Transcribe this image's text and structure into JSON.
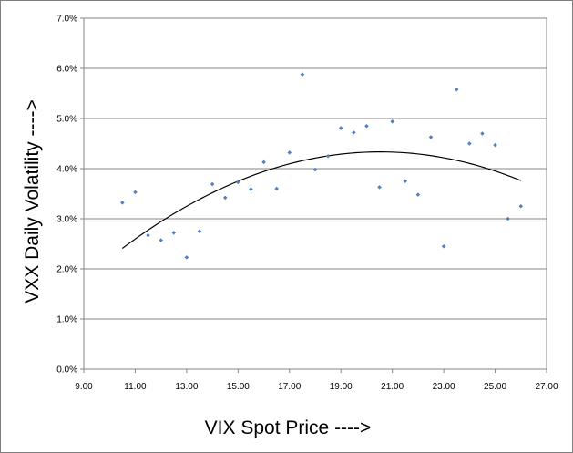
{
  "colors": {
    "marker": "#4f81bd",
    "trendline": "#000000",
    "gridline": "#868686",
    "border": "#7f7f7f"
  },
  "chart_data": {
    "type": "scatter",
    "title": "",
    "xlabel": "VIX Spot Price ---->",
    "ylabel": "VXX Daily Volatility ---->",
    "xlim": [
      9,
      27
    ],
    "ylim": [
      0,
      0.07
    ],
    "x_ticks": [
      9,
      11,
      13,
      15,
      17,
      19,
      21,
      23,
      25,
      27
    ],
    "x_tick_labels": [
      "9.00",
      "11.00",
      "13.00",
      "15.00",
      "17.00",
      "19.00",
      "21.00",
      "23.00",
      "25.00",
      "27.00"
    ],
    "y_ticks": [
      0,
      0.01,
      0.02,
      0.03,
      0.04,
      0.05,
      0.06,
      0.07
    ],
    "y_tick_labels": [
      "0.0%",
      "1.0%",
      "2.0%",
      "3.0%",
      "4.0%",
      "5.0%",
      "6.0%",
      "7.0%"
    ],
    "grid": "horizontal",
    "legend": "none",
    "series": [
      {
        "points": [
          [
            10.5,
            0.0332
          ],
          [
            11.0,
            0.0353
          ],
          [
            11.5,
            0.0267
          ],
          [
            12.0,
            0.0257
          ],
          [
            12.5,
            0.0272
          ],
          [
            13.0,
            0.0223
          ],
          [
            13.5,
            0.0275
          ],
          [
            14.0,
            0.0369
          ],
          [
            14.5,
            0.0342
          ],
          [
            15.0,
            0.0373
          ],
          [
            15.5,
            0.0359
          ],
          [
            16.0,
            0.0413
          ],
          [
            16.5,
            0.036
          ],
          [
            17.0,
            0.0432
          ],
          [
            17.5,
            0.0588
          ],
          [
            18.0,
            0.0398
          ],
          [
            18.5,
            0.0425
          ],
          [
            19.0,
            0.0481
          ],
          [
            19.5,
            0.0472
          ],
          [
            20.0,
            0.0485
          ],
          [
            20.5,
            0.0363
          ],
          [
            21.0,
            0.0494
          ],
          [
            21.5,
            0.0375
          ],
          [
            22.0,
            0.0348
          ],
          [
            22.5,
            0.0463
          ],
          [
            23.0,
            0.0245
          ],
          [
            23.5,
            0.0558
          ],
          [
            24.0,
            0.045
          ],
          [
            24.5,
            0.047
          ],
          [
            25.0,
            0.0447
          ],
          [
            25.5,
            0.03
          ],
          [
            26.0,
            0.0325
          ]
        ]
      }
    ],
    "trendline": {
      "type": "polynomial-2",
      "x_range": [
        10.5,
        26.0
      ],
      "points": [
        [
          10.5,
          0.0245
        ],
        [
          14.0,
          0.0344
        ],
        [
          20.3,
          0.0437
        ],
        [
          23.0,
          0.0425
        ],
        [
          26.0,
          0.0373
        ]
      ]
    }
  }
}
